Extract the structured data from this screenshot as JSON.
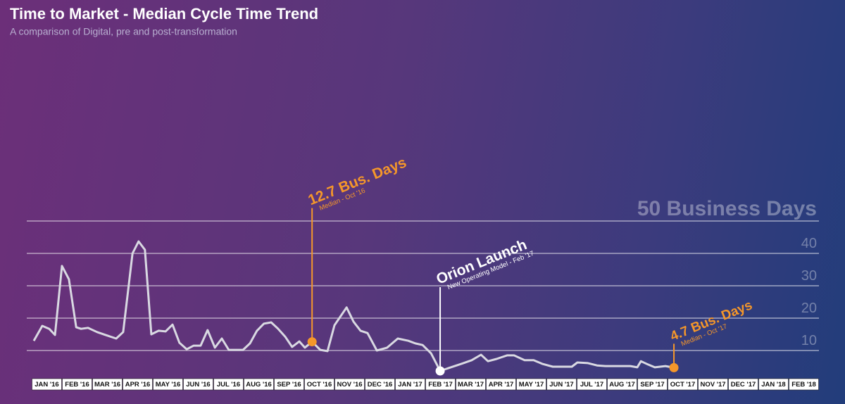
{
  "chart_data": {
    "type": "line",
    "title": "Time to Market - Median Cycle Time Trend",
    "subtitle": "A comparison of Digital, pre and post-transformation",
    "months": [
      "JAN '16",
      "FEB '16",
      "MAR '16",
      "APR '16",
      "MAY '16",
      "JUN '16",
      "JUL '16",
      "AUG '16",
      "SEP '16",
      "OCT '16",
      "NOV '16",
      "DEC '16",
      "JAN '17",
      "FEB '17",
      "MAR '17",
      "APR '17",
      "MAY '17",
      "JUN '17",
      "JUL '17",
      "AUG '17",
      "SEP '17",
      "OCT '17",
      "NOV '17",
      "DEC '17",
      "JAN '18",
      "FEB '18"
    ],
    "xlim": [
      0,
      26
    ],
    "ylim": [
      0,
      50
    ],
    "yticks": [
      10,
      20,
      30,
      40,
      {
        "value": 50,
        "label": "50 Business Days"
      }
    ],
    "grid": true,
    "line_color": "#d9d9e2",
    "x": [
      0.07,
      0.35,
      0.58,
      0.77,
      1.0,
      1.23,
      1.47,
      1.63,
      1.86,
      2.16,
      2.44,
      2.79,
      3.02,
      3.33,
      3.53,
      3.74,
      3.95,
      4.19,
      4.42,
      4.65,
      4.88,
      5.12,
      5.35,
      5.58,
      5.81,
      6.05,
      6.28,
      6.51,
      6.98,
      7.21,
      7.44,
      7.67,
      7.91,
      8.14,
      8.37,
      8.6,
      8.84,
      9.02,
      9.26,
      9.53,
      9.77,
      10.0,
      10.4,
      10.63,
      10.86,
      11.09,
      11.4,
      11.74,
      12.09,
      12.44,
      12.67,
      12.91,
      13.19,
      13.49,
      13.84,
      14.19,
      14.53,
      14.84,
      15.07,
      15.35,
      15.7,
      15.93,
      16.28,
      16.58,
      16.86,
      17.21,
      17.56,
      17.84,
      18.02,
      18.37,
      18.67,
      18.95,
      19.3,
      19.77,
      20.0,
      20.12,
      20.35,
      20.58,
      20.93,
      21.21
    ],
    "values": [
      13.0,
      17.6,
      16.7,
      14.8,
      36.1,
      32.0,
      17.2,
      16.7,
      17.0,
      15.7,
      14.8,
      13.7,
      15.7,
      40.0,
      43.7,
      41.1,
      15.0,
      16.1,
      15.9,
      18.0,
      12.4,
      10.4,
      11.5,
      11.5,
      16.3,
      10.9,
      13.7,
      10.2,
      10.2,
      12.2,
      16.1,
      18.3,
      18.7,
      16.7,
      14.3,
      11.1,
      12.8,
      10.9,
      12.7,
      10.2,
      9.8,
      17.8,
      23.3,
      18.9,
      16.1,
      15.4,
      10.0,
      10.9,
      13.7,
      13.0,
      12.2,
      11.7,
      9.1,
      3.7,
      4.8,
      5.9,
      7.0,
      8.7,
      6.7,
      7.4,
      8.5,
      8.5,
      7.0,
      7.0,
      5.9,
      5.0,
      5.0,
      5.0,
      6.3,
      6.1,
      5.4,
      5.2,
      5.2,
      5.2,
      4.8,
      6.7,
      5.7,
      4.8,
      5.2,
      4.7
    ],
    "annotations": [
      {
        "text": "12.7 Bus. Days",
        "subtext": "Median - Oct '16",
        "x": 9.26,
        "y": 12.7,
        "color": "#f5972a"
      },
      {
        "text": "Orion Launch",
        "subtext": "New Operating Model - Feb '17",
        "x": 13.49,
        "y": 3.7,
        "color": "#ffffff"
      },
      {
        "text": "4.7 Bus. Days",
        "subtext": "Median - Oct '17",
        "x": 21.21,
        "y": 4.7,
        "color": "#f5972a"
      }
    ]
  }
}
